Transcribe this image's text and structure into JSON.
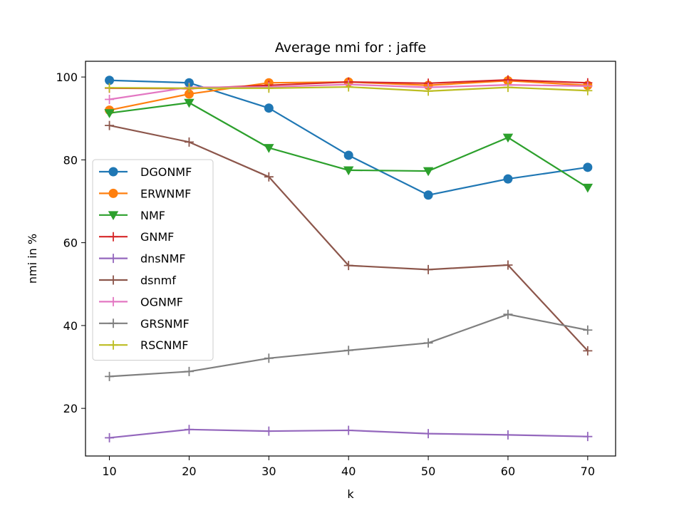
{
  "chart_data": {
    "type": "line",
    "title": "Average nmi for : jaffe",
    "xlabel": "k",
    "ylabel": "nmi in %",
    "x": [
      10,
      20,
      30,
      40,
      50,
      60,
      70
    ],
    "xticks": [
      "10",
      "20",
      "30",
      "40",
      "50",
      "60",
      "70"
    ],
    "yticks": [
      "20",
      "40",
      "60",
      "80",
      "100"
    ],
    "xlim": [
      7,
      73.5
    ],
    "ylim": [
      8.5,
      103.8
    ],
    "grid": false,
    "legend_position": "center-left",
    "series": [
      {
        "name": "DGONMF",
        "color": "#1f77b4",
        "marker": "circle",
        "values": [
          99.2,
          98.6,
          92.5,
          81.1,
          71.5,
          75.4,
          78.2
        ]
      },
      {
        "name": "ERWNMF",
        "color": "#ff7f0e",
        "marker": "circle",
        "values": [
          92.0,
          95.9,
          98.6,
          98.8,
          98.0,
          99.1,
          98.0
        ]
      },
      {
        "name": "NMF",
        "color": "#2ca02c",
        "marker": "triangle-down",
        "values": [
          91.3,
          93.8,
          82.9,
          77.5,
          77.3,
          85.4,
          73.3
        ]
      },
      {
        "name": "GNMF",
        "color": "#d62728",
        "marker": "plus",
        "values": [
          97.3,
          97.2,
          98.0,
          98.8,
          98.5,
          99.3,
          98.6
        ]
      },
      {
        "name": "dnsNMF",
        "color": "#9467bd",
        "marker": "plus",
        "values": [
          12.9,
          14.9,
          14.5,
          14.7,
          13.9,
          13.6,
          13.2
        ]
      },
      {
        "name": "dsnmf",
        "color": "#8c564b",
        "marker": "plus",
        "values": [
          88.3,
          84.3,
          75.9,
          54.5,
          53.5,
          54.6,
          33.9
        ]
      },
      {
        "name": "OGNMF",
        "color": "#e377c2",
        "marker": "plus",
        "values": [
          94.6,
          97.5,
          97.6,
          98.2,
          97.5,
          98.1,
          97.8
        ]
      },
      {
        "name": "GRSNMF",
        "color": "#7f7f7f",
        "marker": "plus",
        "values": [
          27.7,
          28.9,
          32.1,
          34.0,
          35.8,
          42.7,
          38.9
        ]
      },
      {
        "name": "RSCNMF",
        "color": "#bcbd22",
        "marker": "plus",
        "values": [
          97.4,
          97.3,
          97.3,
          97.6,
          96.6,
          97.5,
          96.7
        ]
      }
    ]
  }
}
